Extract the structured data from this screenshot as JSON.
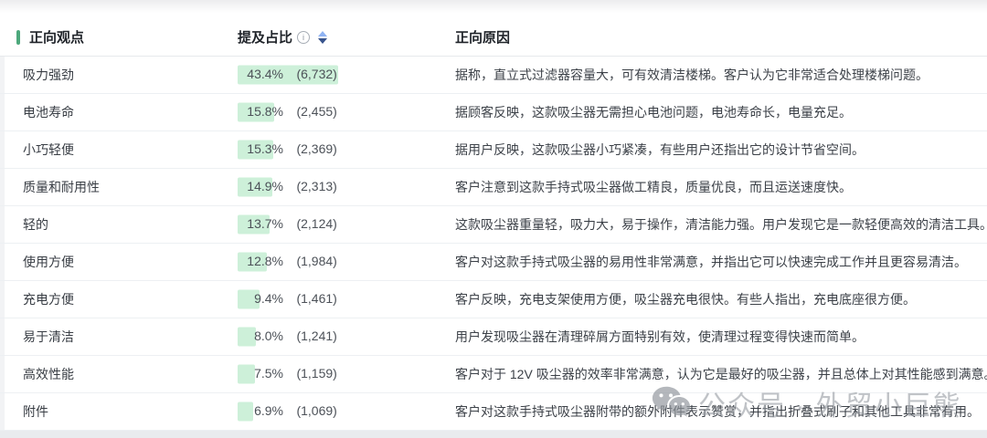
{
  "table": {
    "columns": {
      "viewpoint": "正向观点",
      "mention": "提及占比",
      "reason": "正向原因"
    },
    "rows": [
      {
        "viewpoint": "吸力强劲",
        "pct": "43.4%",
        "value": 43.4,
        "count": "(6,732)",
        "reason": "据称，直立式过滤器容量大，可有效清洁楼梯。客户认为它非常适合处理楼梯问题。"
      },
      {
        "viewpoint": "电池寿命",
        "pct": "15.8%",
        "value": 15.8,
        "count": "(2,455)",
        "reason": "据顾客反映，这款吸尘器无需担心电池问题，电池寿命长，电量充足。"
      },
      {
        "viewpoint": "小巧轻便",
        "pct": "15.3%",
        "value": 15.3,
        "count": "(2,369)",
        "reason": "据用户反映，这款吸尘器小巧紧凑，有些用户还指出它的设计节省空间。"
      },
      {
        "viewpoint": "质量和耐用性",
        "pct": "14.9%",
        "value": 14.9,
        "count": "(2,313)",
        "reason": "客户注意到这款手持式吸尘器做工精良，质量优良，而且运送速度快。"
      },
      {
        "viewpoint": "轻的",
        "pct": "13.7%",
        "value": 13.7,
        "count": "(2,124)",
        "reason": "这款吸尘器重量轻，吸力大，易于操作，清洁能力强。用户发现它是一款轻便高效的清洁工具。"
      },
      {
        "viewpoint": "使用方便",
        "pct": "12.8%",
        "value": 12.8,
        "count": "(1,984)",
        "reason": "客户对这款手持式吸尘器的易用性非常满意，并指出它可以快速完成工作并且更容易清洁。"
      },
      {
        "viewpoint": "充电方便",
        "pct": "9.4%",
        "value": 9.4,
        "count": "(1,461)",
        "reason": "客户反映，充电支架使用方便，吸尘器充电很快。有些人指出，充电底座很方便。"
      },
      {
        "viewpoint": "易于清洁",
        "pct": "8.0%",
        "value": 8.0,
        "count": "(1,241)",
        "reason": "用户发现吸尘器在清理碎屑方面特别有效，使清理过程变得快速而简单。"
      },
      {
        "viewpoint": "高效性能",
        "pct": "7.5%",
        "value": 7.5,
        "count": "(1,159)",
        "reason": "客户对于 12V 吸尘器的效率非常满意，认为它是最好的吸尘器，并且总体上对其性能感到满意。"
      },
      {
        "viewpoint": "附件",
        "pct": "6.9%",
        "value": 6.9,
        "count": "(1,069)",
        "reason": "客户对这款手持式吸尘器附带的额外附件表示赞赏，并指出折叠式刷子和其他工具非常有用。"
      }
    ]
  },
  "watermark": {
    "text": "公众号 · 外贸小巨熊"
  },
  "colors": {
    "accent": "#4da87c",
    "bar_fill": "#cdf0d9",
    "sort_up": "#8fb3f3",
    "sort_down": "#37538c"
  },
  "icons": {
    "info": "info-circle-icon",
    "sort": "sort-arrows-icon",
    "watermark": "wechat-icon"
  }
}
